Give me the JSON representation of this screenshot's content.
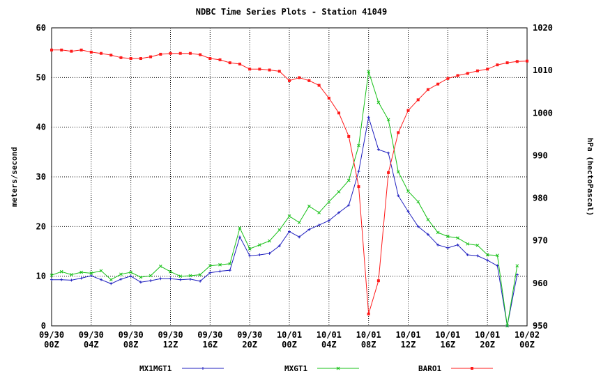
{
  "chart_data": {
    "type": "line",
    "title": "NDBC Time Series Plots - Station 41049",
    "ylabel": "meters/second",
    "y2label": "hPa (hectoPascal)",
    "ylim": [
      0,
      60
    ],
    "y2lim": [
      950,
      1020
    ],
    "yticks": [
      0,
      10,
      20,
      30,
      40,
      50,
      60
    ],
    "y2ticks": [
      950,
      960,
      970,
      980,
      990,
      1000,
      1010,
      1020
    ],
    "xlim": [
      0,
      48
    ],
    "xticks": [
      {
        "x": 0,
        "line1": "09/30",
        "line2": "00Z"
      },
      {
        "x": 4,
        "line1": "09/30",
        "line2": "04Z"
      },
      {
        "x": 8,
        "line1": "09/30",
        "line2": "08Z"
      },
      {
        "x": 12,
        "line1": "09/30",
        "line2": "12Z"
      },
      {
        "x": 16,
        "line1": "09/30",
        "line2": "16Z"
      },
      {
        "x": 20,
        "line1": "09/30",
        "line2": "20Z"
      },
      {
        "x": 24,
        "line1": "10/01",
        "line2": "00Z"
      },
      {
        "x": 28,
        "line1": "10/01",
        "line2": "04Z"
      },
      {
        "x": 32,
        "line1": "10/01",
        "line2": "08Z"
      },
      {
        "x": 36,
        "line1": "10/01",
        "line2": "12Z"
      },
      {
        "x": 40,
        "line1": "10/01",
        "line2": "16Z"
      },
      {
        "x": 44,
        "line1": "10/01",
        "line2": "20Z"
      },
      {
        "x": 48,
        "line1": "10/02",
        "line2": "00Z"
      }
    ],
    "grid": true,
    "legend_position": "bottom",
    "series": [
      {
        "name": "MX1MGT1",
        "color": "#1f1fbf",
        "axis": "left",
        "marker": "plus",
        "x": [
          0,
          1,
          2,
          3,
          4,
          5,
          6,
          7,
          8,
          9,
          10,
          11,
          12,
          13,
          14,
          15,
          16,
          17,
          18,
          19,
          20,
          21,
          22,
          23,
          24,
          25,
          26,
          27,
          28,
          29,
          30,
          31,
          32,
          33,
          34,
          35,
          36,
          37,
          38,
          39,
          40,
          41,
          42,
          43,
          44,
          45,
          46,
          47
        ],
        "values": [
          9.3,
          9.3,
          9.2,
          9.6,
          10.1,
          9.3,
          8.5,
          9.4,
          10.0,
          8.8,
          9.1,
          9.5,
          9.5,
          9.3,
          9.4,
          9.0,
          10.7,
          11.0,
          11.2,
          17.9,
          14.1,
          14.3,
          14.6,
          16.1,
          19.0,
          17.9,
          19.4,
          20.3,
          21.2,
          22.8,
          24.3,
          31.1,
          42.0,
          35.5,
          34.8,
          26.2,
          23.0,
          20.0,
          18.4,
          16.3,
          15.7,
          16.3,
          14.3,
          14.1,
          13.2,
          12.1,
          0.0,
          10.3
        ]
      },
      {
        "name": "MXGT1",
        "color": "#16c016",
        "axis": "left",
        "marker": "x",
        "x": [
          0,
          1,
          2,
          3,
          4,
          5,
          6,
          7,
          8,
          9,
          10,
          11,
          12,
          13,
          14,
          15,
          16,
          17,
          18,
          19,
          20,
          21,
          22,
          23,
          24,
          25,
          26,
          27,
          28,
          29,
          30,
          31,
          32,
          33,
          34,
          35,
          36,
          37,
          38,
          39,
          40,
          41,
          42,
          43,
          44,
          45,
          46,
          47
        ],
        "values": [
          10.2,
          10.9,
          10.3,
          10.8,
          10.6,
          11.1,
          9.3,
          10.4,
          10.8,
          9.8,
          10.1,
          12.0,
          10.9,
          10.0,
          10.1,
          10.3,
          12.1,
          12.3,
          12.5,
          19.7,
          15.5,
          16.3,
          17.1,
          19.3,
          22.1,
          20.8,
          24.1,
          22.8,
          25.0,
          27.0,
          29.3,
          36.3,
          51.2,
          45.0,
          41.5,
          31.0,
          27.1,
          25.0,
          21.4,
          18.8,
          18.0,
          17.7,
          16.5,
          16.2,
          14.3,
          14.2,
          0.0,
          12.1
        ]
      },
      {
        "name": "BARO1",
        "color": "#ff1a1a",
        "axis": "right",
        "marker": "square",
        "x": [
          0,
          1,
          2,
          3,
          4,
          5,
          6,
          7,
          8,
          9,
          10,
          11,
          12,
          13,
          14,
          15,
          16,
          17,
          18,
          19,
          20,
          21,
          22,
          23,
          24,
          25,
          26,
          27,
          28,
          29,
          30,
          31,
          32,
          33,
          34,
          35,
          36,
          37,
          38,
          39,
          40,
          41,
          42,
          43,
          44,
          45,
          46,
          47,
          48
        ],
        "values": [
          1014.8,
          1014.8,
          1014.5,
          1014.8,
          1014.3,
          1014.0,
          1013.6,
          1013.0,
          1012.8,
          1012.8,
          1013.2,
          1013.8,
          1014.0,
          1014.0,
          1014.0,
          1013.7,
          1012.8,
          1012.5,
          1011.8,
          1011.5,
          1010.3,
          1010.3,
          1010.1,
          1009.8,
          1007.6,
          1008.3,
          1007.6,
          1006.5,
          1003.5,
          1000.0,
          994.5,
          982.7,
          952.8,
          960.6,
          986.0,
          995.4,
          1000.6,
          1003.1,
          1005.5,
          1006.8,
          1008.1,
          1008.8,
          1009.3,
          1009.9,
          1010.3,
          1011.3,
          1011.8,
          1012.1,
          1012.2
        ]
      }
    ]
  }
}
